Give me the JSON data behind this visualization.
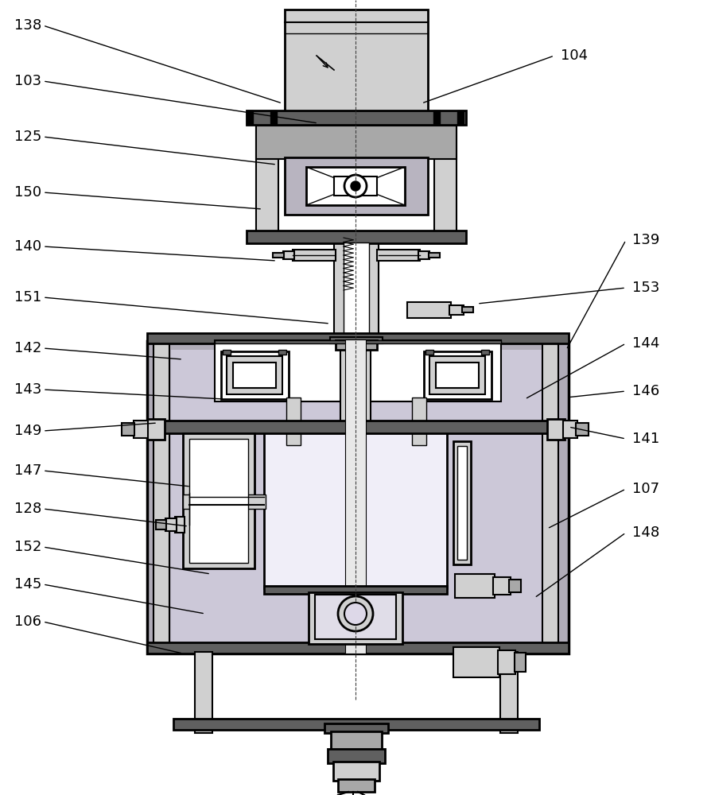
{
  "bg_color": "#ffffff",
  "lc": "#000000",
  "c_white": "#ffffff",
  "c_lgray": "#d0d0d0",
  "c_mgray": "#a8a8a8",
  "c_dgray": "#606060",
  "c_box": "#b8b4c0",
  "c_inner": "#dcd8e8",
  "c_hatch": "#9090a0",
  "label_fs": 13,
  "left_labels": [
    [
      "138",
      18,
      968,
      355,
      870
    ],
    [
      "103",
      18,
      898,
      400,
      845
    ],
    [
      "125",
      18,
      828,
      348,
      793
    ],
    [
      "150",
      18,
      758,
      330,
      737
    ],
    [
      "140",
      18,
      690,
      348,
      672
    ],
    [
      "151",
      18,
      626,
      415,
      593
    ],
    [
      "142",
      18,
      562,
      230,
      548
    ],
    [
      "143",
      18,
      510,
      282,
      498
    ],
    [
      "149",
      18,
      458,
      198,
      468
    ],
    [
      "147",
      18,
      408,
      240,
      388
    ],
    [
      "128",
      18,
      360,
      237,
      338
    ],
    [
      "152",
      18,
      312,
      265,
      278
    ],
    [
      "145",
      18,
      265,
      258,
      228
    ],
    [
      "106",
      18,
      218,
      230,
      178
    ]
  ],
  "right_labels": [
    [
      "104",
      705,
      930,
      530,
      870
    ],
    [
      "139",
      795,
      698,
      712,
      560
    ],
    [
      "153",
      795,
      638,
      600,
      618
    ],
    [
      "144",
      795,
      568,
      660,
      498
    ],
    [
      "146",
      795,
      508,
      712,
      500
    ],
    [
      "141",
      795,
      448,
      715,
      463
    ],
    [
      "107",
      795,
      385,
      688,
      335
    ],
    [
      "148",
      795,
      330,
      672,
      248
    ]
  ]
}
